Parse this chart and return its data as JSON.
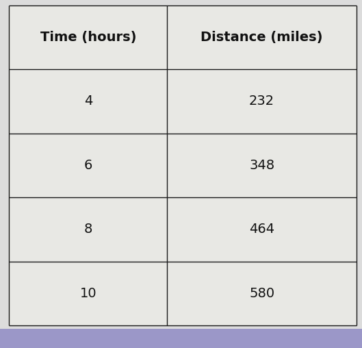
{
  "col_headers": [
    "Time (hours)",
    "Distance (miles)"
  ],
  "rows": [
    [
      "4",
      "232"
    ],
    [
      "6",
      "348"
    ],
    [
      "8",
      "464"
    ],
    [
      "10",
      "580"
    ]
  ],
  "fig_bg_color": "#dcdcdc",
  "cell_bg_color": "#e8e8e4",
  "line_color": "#1a1a1a",
  "text_color": "#111111",
  "header_fontsize": 14,
  "cell_fontsize": 14,
  "figsize": [
    5.29,
    5.08
  ],
  "dpi": 100,
  "bottom_bar_color": "#9b97c8",
  "bottom_bar_height": 0.055
}
